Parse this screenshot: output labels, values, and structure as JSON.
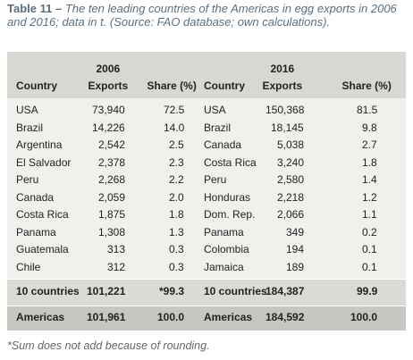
{
  "title": {
    "label": "Table 11 –",
    "text": "The ten leading countries of the Americas in egg exports in 2006 and 2016; data in t. (Source: FAO database; own calculations)."
  },
  "table": {
    "years": [
      "2006",
      "2016"
    ],
    "columns": [
      "Country",
      "Exports",
      "Share (%)",
      "Country",
      "Exports",
      "Share (%)"
    ],
    "rows": [
      [
        "USA",
        "73,940",
        "72.5",
        "USA",
        "150,368",
        "81.5"
      ],
      [
        "Brazil",
        "14,226",
        "14.0",
        "Brazil",
        "18,145",
        "9.8"
      ],
      [
        "Argentina",
        "2,542",
        "2.5",
        "Canada",
        "5,038",
        "2.7"
      ],
      [
        "El Salvador",
        "2,378",
        "2.3",
        "Costa Rica",
        "3,240",
        "1.8"
      ],
      [
        "Peru",
        "2,268",
        "2.2",
        "Peru",
        "2,580",
        "1.4"
      ],
      [
        "Canada",
        "2,059",
        "2.0",
        "Honduras",
        "2,218",
        "1.2"
      ],
      [
        "Costa Rica",
        "1,875",
        "1.8",
        "Dom. Rep.",
        "2,066",
        "1.1"
      ],
      [
        "Panama",
        "1,308",
        "1.3",
        "Panama",
        "349",
        "0.2"
      ],
      [
        "Guatemala",
        "313",
        "0.3",
        "Colombia",
        "194",
        "0.1"
      ],
      [
        "Chile",
        "312",
        "0.3",
        "Jamaica",
        "189",
        "0.1"
      ]
    ],
    "total": [
      "10 countries",
      "101,221",
      "*99.3",
      "10 countries",
      "184,387",
      "99.9"
    ],
    "americas": [
      "Americas",
      "101,961",
      "100.0",
      "Americas",
      "184,592",
      "100.0"
    ]
  },
  "footnote": "*Sum does not add because of rounding."
}
